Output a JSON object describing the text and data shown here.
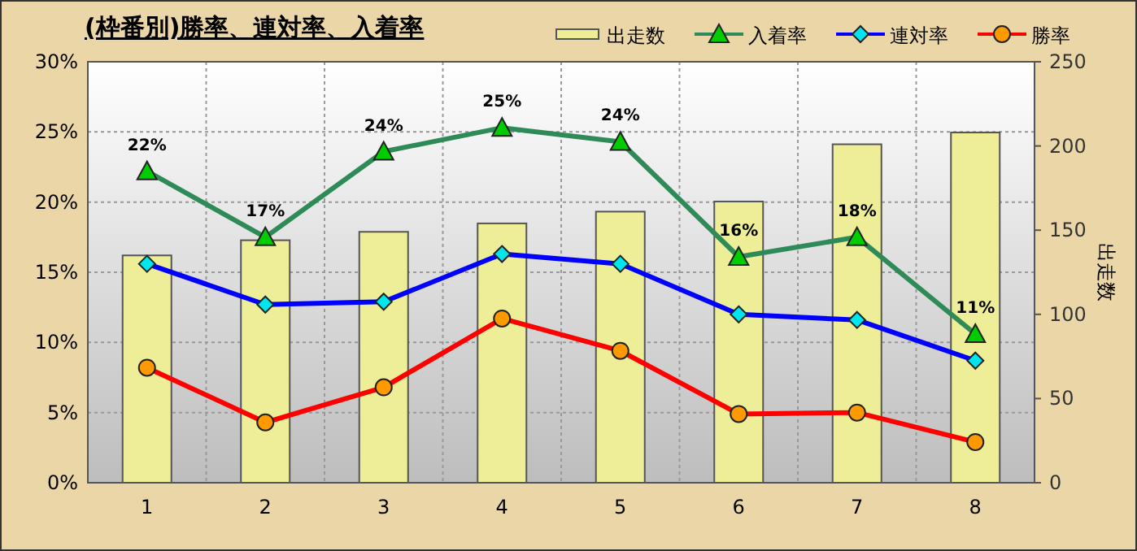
{
  "chart_data": {
    "type": "line",
    "title": "(枠番別)勝率、連対率、入着率",
    "categories": [
      "1",
      "2",
      "3",
      "4",
      "5",
      "6",
      "7",
      "8"
    ],
    "ylim": [
      0,
      30
    ],
    "yticks": [
      {
        "value": 0,
        "label": "0%"
      },
      {
        "value": 5,
        "label": "5%"
      },
      {
        "value": 10,
        "label": "10%"
      },
      {
        "value": 15,
        "label": "15%"
      },
      {
        "value": 20,
        "label": "20%"
      },
      {
        "value": 25,
        "label": "25%"
      },
      {
        "value": 30,
        "label": "30%"
      }
    ],
    "y2lim": [
      0,
      250
    ],
    "y2ticks": [
      0,
      50,
      100,
      150,
      200,
      250
    ],
    "y2label": "出走数",
    "grid": true,
    "legend": "top right",
    "series": [
      {
        "name": "出走数",
        "type": "bar",
        "axis": "y2",
        "color": "#eeee99",
        "values": [
          135,
          144,
          149,
          154,
          161,
          167,
          201,
          208
        ]
      },
      {
        "name": "入着率",
        "color": "#2e8b57",
        "marker": "triangle",
        "values": [
          22.2,
          17.5,
          23.6,
          25.3,
          24.3,
          16.1,
          17.5,
          10.6
        ],
        "value_labels": [
          "22%",
          "17%",
          "24%",
          "25%",
          "24%",
          "16%",
          "18%",
          "11%"
        ]
      },
      {
        "name": "連対率",
        "color": "#0000ff",
        "marker": "diamond",
        "values": [
          15.6,
          12.7,
          12.9,
          16.3,
          15.6,
          12.0,
          11.6,
          8.7
        ]
      },
      {
        "name": "勝率",
        "color": "#ff0000",
        "marker": "circle",
        "values": [
          8.2,
          4.3,
          6.8,
          11.7,
          9.4,
          4.9,
          5.0,
          2.9
        ]
      }
    ]
  }
}
